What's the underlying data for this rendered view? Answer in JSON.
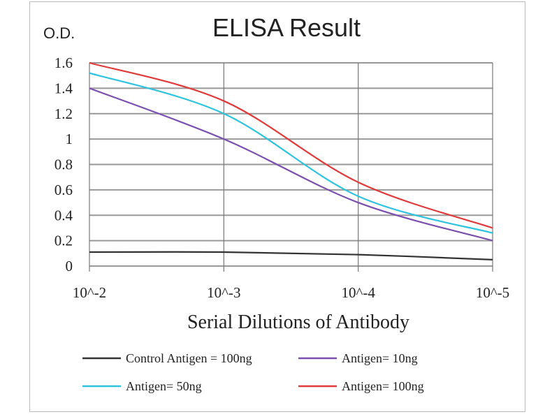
{
  "chart_data": {
    "type": "line",
    "title": "ELISA Result",
    "ylabel": "O.D.",
    "xlabel": "Serial Dilutions  of Antibody",
    "categories": [
      "10^-2",
      "10^-3",
      "10^-4",
      "10^-5"
    ],
    "yticks": [
      "0",
      "0.2",
      "0.4",
      "0.6",
      "0.8",
      "1",
      "1.2",
      "1.4",
      "1.6"
    ],
    "ylim": [
      0,
      1.6
    ],
    "grid": true,
    "legend_position": "bottom",
    "series": [
      {
        "name": "Control Antigen = 100ng",
        "color": "#333333",
        "values": [
          0.11,
          0.11,
          0.09,
          0.05
        ]
      },
      {
        "name": "Antigen= 10ng",
        "color": "#7b4fb0",
        "values": [
          1.4,
          1.0,
          0.5,
          0.2
        ]
      },
      {
        "name": "Antigen= 50ng",
        "color": "#2ec4e0",
        "values": [
          1.52,
          1.2,
          0.55,
          0.26
        ]
      },
      {
        "name": "Antigen= 100ng",
        "color": "#e03a3a",
        "values": [
          1.6,
          1.3,
          0.66,
          0.3
        ]
      }
    ]
  }
}
